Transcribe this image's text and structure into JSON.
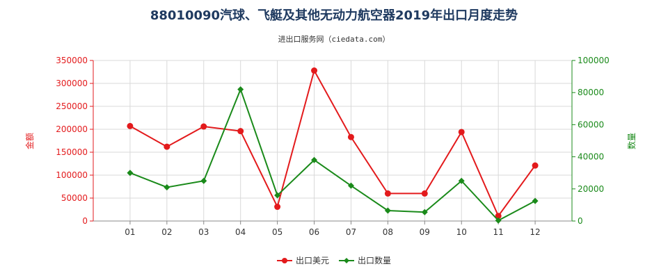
{
  "chart_data": {
    "type": "line",
    "title": "88010090汽球、飞艇及其他无动力航空器2019年出口月度走势",
    "subtitle": "进出口服务网（ciedata.com）",
    "categories": [
      "01",
      "02",
      "03",
      "04",
      "05",
      "06",
      "07",
      "08",
      "09",
      "10",
      "11",
      "12"
    ],
    "ylabel_left": "金额",
    "ylabel_right": "数量",
    "ylim_left": [
      0,
      350000
    ],
    "ylim_right": [
      0,
      100000
    ],
    "yticks_left": [
      "0",
      "50000",
      "100000",
      "150000",
      "200000",
      "250000",
      "300000",
      "350000"
    ],
    "yticks_right": [
      "0",
      "20000",
      "40000",
      "60000",
      "80000",
      "100000"
    ],
    "grid": true,
    "legend_position": "bottom-center",
    "series": [
      {
        "name": "出口美元",
        "axis": "left",
        "color": "#e31a1c",
        "values": [
          207000,
          162000,
          206000,
          196000,
          31000,
          328000,
          183000,
          60000,
          60000,
          194000,
          11000,
          121000
        ]
      },
      {
        "name": "出口数量",
        "axis": "right",
        "color": "#1a8a1a",
        "values": [
          30000,
          21000,
          25000,
          82000,
          16000,
          38000,
          22000,
          6500,
          5500,
          25000,
          300,
          12500
        ]
      }
    ]
  }
}
